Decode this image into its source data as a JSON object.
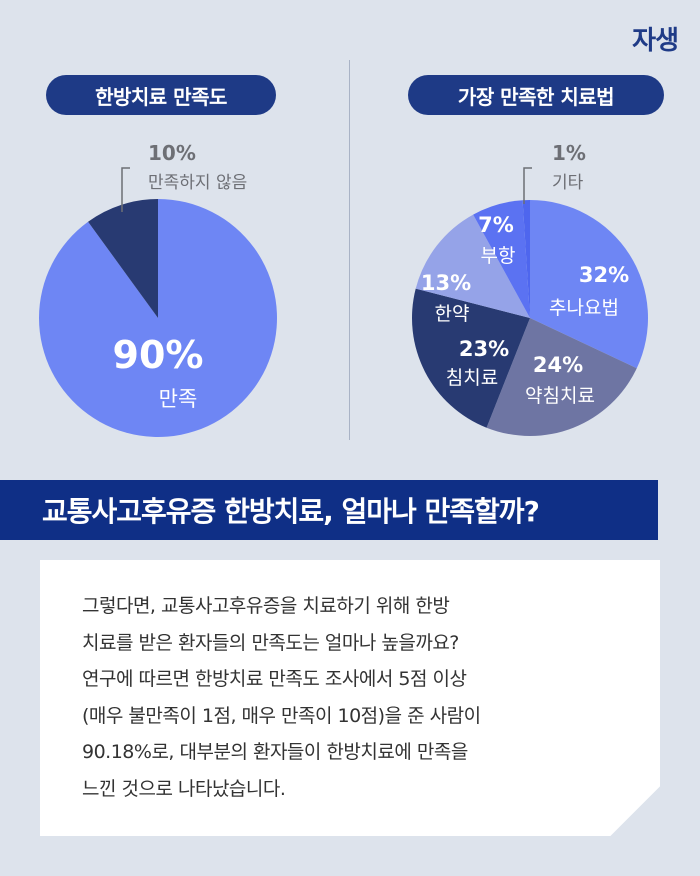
{
  "brand": "자생",
  "left_title": "한방치료 만족도",
  "right_title": "가장 만족한 치료법",
  "banner": "교통사고후유증 한방치료, 얼마나 만족할까?",
  "body_text": "그렇다면, 교통사고후유증을 치료하기 위해 한방 치료를 받은 환자들의 만족도는 얼마나 높을까요? 연구에 따르면 한방치료 만족도 조사에서 5점 이상 (매우 불만족이 1점, 매우 만족이 10점)을 준 사람이 90.18%로, 대부분의 환자들이 한방치료에 만족을 느낀 것으로 나타났습니다.",
  "body_lines": [
    "그렇다면, 교통사고후유증을 치료하기 위해 한방",
    "치료를 받은 환자들의 만족도는 얼마나 높을까요?",
    "연구에 따르면 한방치료 만족도 조사에서 5점 이상",
    "(매우 불만족이 1점, 매우 만족이 10점)을 준 사람이",
    "90.18%로, 대부분의 환자들이 한방치료에 만족을",
    "느낀 것으로 나타났습니다."
  ],
  "chart_data": [
    {
      "type": "pie",
      "title": "한방치료 만족도",
      "slices": [
        {
          "label": "만족",
          "value": 90,
          "value_label": "90%",
          "color": "#6e86f4"
        },
        {
          "label": "만족하지 않음",
          "value": 10,
          "value_label": "10%",
          "color": "#283a72"
        }
      ]
    },
    {
      "type": "pie",
      "title": "가장 만족한 치료법",
      "slices": [
        {
          "label": "추나요법",
          "value": 32,
          "value_label": "32%",
          "color": "#6e86f4"
        },
        {
          "label": "약침치료",
          "value": 24,
          "value_label": "24%",
          "color": "#6e75a3"
        },
        {
          "label": "침치료",
          "value": 23,
          "value_label": "23%",
          "color": "#283a72"
        },
        {
          "label": "한약",
          "value": 13,
          "value_label": "13%",
          "color": "#95a3e8"
        },
        {
          "label": "부항",
          "value": 7,
          "value_label": "7%",
          "color": "#5b72f2"
        },
        {
          "label": "기타",
          "value": 1,
          "value_label": "1%",
          "color": "#4e66ee"
        }
      ]
    }
  ]
}
